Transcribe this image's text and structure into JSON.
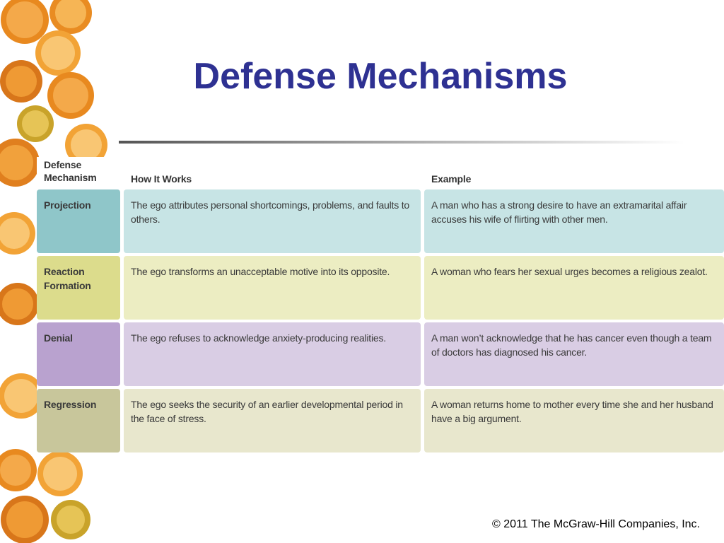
{
  "header": {
    "title": "Defense Mechanisms"
  },
  "table": {
    "columns": [
      "Defense Mechanism",
      "How It Works",
      "Example"
    ],
    "rows": [
      [
        "Projection",
        "The ego attributes personal shortcomings, problems, and faults to others.",
        "A man who has a strong desire to have an extramarital affair accuses his wife of flirting with other men."
      ],
      [
        "Reaction Formation",
        "The ego transforms an unacceptable motive into its opposite.",
        "A woman who fears her sexual urges becomes a religious zealot."
      ],
      [
        "Denial",
        "The ego refuses to acknowledge anxiety-producing realities.",
        "A man won’t acknowledge that he has cancer even though a team of doctors has diagnosed his cancer."
      ],
      [
        "Regression",
        "The ego seeks the security of an earlier developmental period in the face of stress.",
        "A woman returns home to mother every time she and her husband have a big argument."
      ]
    ]
  },
  "footer": {
    "copyright": "© 2011 The McGraw-Hill Companies, Inc."
  }
}
